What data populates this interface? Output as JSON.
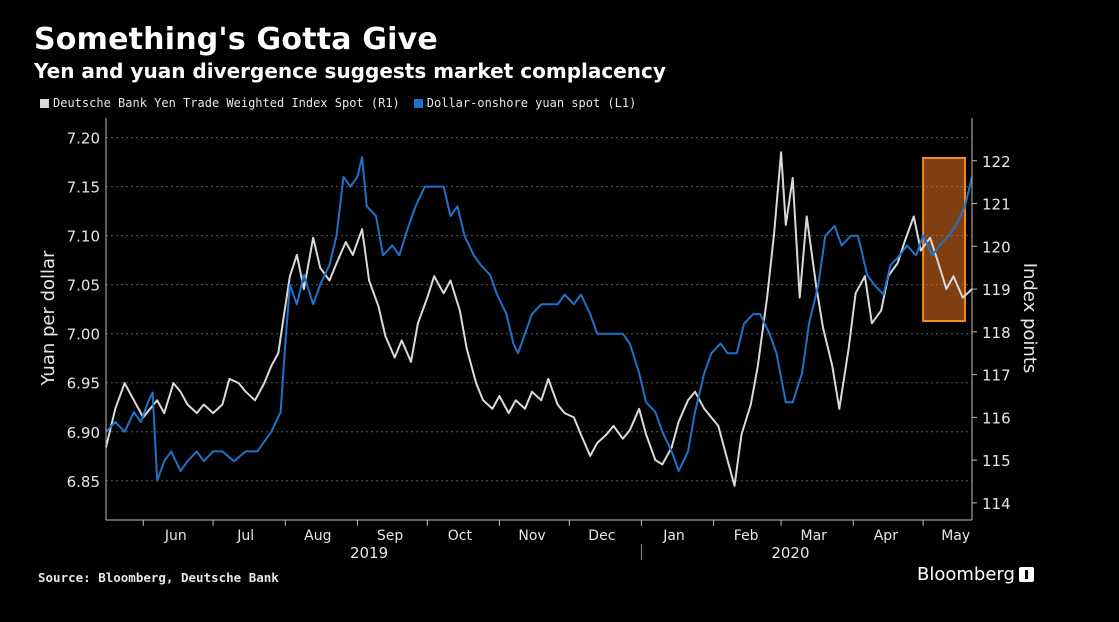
{
  "header": {
    "title": "Something's Gotta Give",
    "subtitle": "Yen and yuan divergence suggests market complacency"
  },
  "footer": {
    "source": "Source: Bloomberg, Deutsche Bank",
    "brand": "Bloomberg"
  },
  "colors": {
    "background": "#000000",
    "yen_series": "#d9d9d9",
    "yuan_series": "#1f72c9",
    "highlight": "#e8731f"
  },
  "chart_data": {
    "type": "line",
    "title": "Something's Gotta Give",
    "subtitle": "Yen and yuan divergence suggests market complacency",
    "legend": "top-left",
    "grid": true,
    "x_months": [
      "Jun",
      "Jul",
      "Aug",
      "Sep",
      "Oct",
      "Nov",
      "Dec",
      "Jan",
      "Feb",
      "Mar",
      "Apr",
      "May"
    ],
    "x_years": [
      "2019",
      "2020"
    ],
    "x_range": [
      "2019-05-16",
      "2020-05-22"
    ],
    "left_axis": {
      "label": "Yuan per dollar",
      "ylim": [
        6.81,
        7.22
      ],
      "ticks": [
        6.85,
        6.9,
        6.95,
        7.0,
        7.05,
        7.1,
        7.15,
        7.2
      ]
    },
    "right_axis": {
      "label": "Index points",
      "ylim": [
        113.6,
        123.0
      ],
      "ticks": [
        114,
        115,
        116,
        117,
        118,
        119,
        120,
        121,
        122
      ]
    },
    "highlight": {
      "from": "2020-05-01",
      "to": "2020-05-19",
      "label": ""
    },
    "series": [
      {
        "name": "Deutsche Bank Yen Trade Weighted Index Spot (R1)",
        "axis": "right",
        "color": "#d9d9d9",
        "points": [
          [
            "2019-05-16",
            115.3
          ],
          [
            "2019-05-20",
            116.2
          ],
          [
            "2019-05-24",
            116.8
          ],
          [
            "2019-05-28",
            116.4
          ],
          [
            "2019-06-01",
            116.0
          ],
          [
            "2019-06-04",
            116.2
          ],
          [
            "2019-06-07",
            116.4
          ],
          [
            "2019-06-10",
            116.1
          ],
          [
            "2019-06-14",
            116.8
          ],
          [
            "2019-06-17",
            116.6
          ],
          [
            "2019-06-20",
            116.3
          ],
          [
            "2019-06-24",
            116.1
          ],
          [
            "2019-06-27",
            116.3
          ],
          [
            "2019-07-01",
            116.1
          ],
          [
            "2019-07-05",
            116.3
          ],
          [
            "2019-07-08",
            116.9
          ],
          [
            "2019-07-12",
            116.8
          ],
          [
            "2019-07-15",
            116.6
          ],
          [
            "2019-07-19",
            116.4
          ],
          [
            "2019-07-23",
            116.8
          ],
          [
            "2019-07-26",
            117.2
          ],
          [
            "2019-07-29",
            117.5
          ],
          [
            "2019-08-01",
            118.6
          ],
          [
            "2019-08-03",
            119.3
          ],
          [
            "2019-08-06",
            119.8
          ],
          [
            "2019-08-09",
            119.0
          ],
          [
            "2019-08-13",
            120.2
          ],
          [
            "2019-08-16",
            119.5
          ],
          [
            "2019-08-20",
            119.2
          ],
          [
            "2019-08-23",
            119.6
          ],
          [
            "2019-08-27",
            120.1
          ],
          [
            "2019-08-30",
            119.8
          ],
          [
            "2019-09-03",
            120.4
          ],
          [
            "2019-09-06",
            119.2
          ],
          [
            "2019-09-10",
            118.6
          ],
          [
            "2019-09-13",
            117.9
          ],
          [
            "2019-09-17",
            117.4
          ],
          [
            "2019-09-20",
            117.8
          ],
          [
            "2019-09-24",
            117.3
          ],
          [
            "2019-09-27",
            118.2
          ],
          [
            "2019-10-01",
            118.8
          ],
          [
            "2019-10-04",
            119.3
          ],
          [
            "2019-10-08",
            118.9
          ],
          [
            "2019-10-11",
            119.2
          ],
          [
            "2019-10-15",
            118.5
          ],
          [
            "2019-10-18",
            117.6
          ],
          [
            "2019-10-22",
            116.8
          ],
          [
            "2019-10-25",
            116.4
          ],
          [
            "2019-10-29",
            116.2
          ],
          [
            "2019-11-01",
            116.5
          ],
          [
            "2019-11-05",
            116.1
          ],
          [
            "2019-11-08",
            116.4
          ],
          [
            "2019-11-12",
            116.2
          ],
          [
            "2019-11-15",
            116.6
          ],
          [
            "2019-11-19",
            116.4
          ],
          [
            "2019-11-22",
            116.9
          ],
          [
            "2019-11-26",
            116.3
          ],
          [
            "2019-11-29",
            116.1
          ],
          [
            "2019-12-03",
            116.0
          ],
          [
            "2019-12-06",
            115.6
          ],
          [
            "2019-12-10",
            115.1
          ],
          [
            "2019-12-13",
            115.4
          ],
          [
            "2019-12-17",
            115.6
          ],
          [
            "2019-12-20",
            115.8
          ],
          [
            "2019-12-24",
            115.5
          ],
          [
            "2019-12-27",
            115.7
          ],
          [
            "2019-12-31",
            116.2
          ],
          [
            "2020-01-03",
            115.6
          ],
          [
            "2020-01-07",
            115.0
          ],
          [
            "2020-01-10",
            114.9
          ],
          [
            "2020-01-14",
            115.3
          ],
          [
            "2020-01-17",
            115.9
          ],
          [
            "2020-01-21",
            116.4
          ],
          [
            "2020-01-24",
            116.6
          ],
          [
            "2020-01-28",
            116.2
          ],
          [
            "2020-01-31",
            116.0
          ],
          [
            "2020-02-03",
            115.8
          ],
          [
            "2020-02-06",
            115.2
          ],
          [
            "2020-02-10",
            114.4
          ],
          [
            "2020-02-13",
            115.6
          ],
          [
            "2020-02-17",
            116.3
          ],
          [
            "2020-02-20",
            117.2
          ],
          [
            "2020-02-24",
            118.8
          ],
          [
            "2020-02-27",
            120.3
          ],
          [
            "2020-03-01",
            122.2
          ],
          [
            "2020-03-03",
            120.5
          ],
          [
            "2020-03-06",
            121.6
          ],
          [
            "2020-03-09",
            118.8
          ],
          [
            "2020-03-12",
            120.7
          ],
          [
            "2020-03-16",
            119.1
          ],
          [
            "2020-03-19",
            118.1
          ],
          [
            "2020-03-23",
            117.2
          ],
          [
            "2020-03-26",
            116.2
          ],
          [
            "2020-03-30",
            117.6
          ],
          [
            "2020-04-02",
            118.9
          ],
          [
            "2020-04-06",
            119.3
          ],
          [
            "2020-04-09",
            118.2
          ],
          [
            "2020-04-13",
            118.5
          ],
          [
            "2020-04-16",
            119.3
          ],
          [
            "2020-04-20",
            119.6
          ],
          [
            "2020-04-23",
            120.1
          ],
          [
            "2020-04-27",
            120.7
          ],
          [
            "2020-04-30",
            119.9
          ],
          [
            "2020-05-04",
            120.2
          ],
          [
            "2020-05-07",
            119.7
          ],
          [
            "2020-05-11",
            119.0
          ],
          [
            "2020-05-14",
            119.3
          ],
          [
            "2020-05-18",
            118.8
          ],
          [
            "2020-05-22",
            119.0
          ]
        ]
      },
      {
        "name": "Dollar-onshore yuan spot (L1)",
        "axis": "left",
        "color": "#1f72c9",
        "points": [
          [
            "2019-05-16",
            6.9
          ],
          [
            "2019-05-20",
            6.91
          ],
          [
            "2019-05-24",
            6.9
          ],
          [
            "2019-05-28",
            6.92
          ],
          [
            "2019-05-31",
            6.91
          ],
          [
            "2019-06-03",
            6.93
          ],
          [
            "2019-06-05",
            6.94
          ],
          [
            "2019-06-07",
            6.85
          ],
          [
            "2019-06-10",
            6.87
          ],
          [
            "2019-06-13",
            6.88
          ],
          [
            "2019-06-17",
            6.86
          ],
          [
            "2019-06-20",
            6.87
          ],
          [
            "2019-06-24",
            6.88
          ],
          [
            "2019-06-27",
            6.87
          ],
          [
            "2019-07-01",
            6.88
          ],
          [
            "2019-07-05",
            6.88
          ],
          [
            "2019-07-10",
            6.87
          ],
          [
            "2019-07-15",
            6.88
          ],
          [
            "2019-07-20",
            6.88
          ],
          [
            "2019-07-26",
            6.9
          ],
          [
            "2019-07-30",
            6.92
          ],
          [
            "2019-08-01",
            6.99
          ],
          [
            "2019-08-03",
            7.05
          ],
          [
            "2019-08-06",
            7.03
          ],
          [
            "2019-08-09",
            7.06
          ],
          [
            "2019-08-13",
            7.03
          ],
          [
            "2019-08-16",
            7.05
          ],
          [
            "2019-08-20",
            7.07
          ],
          [
            "2019-08-23",
            7.1
          ],
          [
            "2019-08-26",
            7.16
          ],
          [
            "2019-08-29",
            7.15
          ],
          [
            "2019-09-01",
            7.16
          ],
          [
            "2019-09-03",
            7.18
          ],
          [
            "2019-09-05",
            7.13
          ],
          [
            "2019-09-09",
            7.12
          ],
          [
            "2019-09-12",
            7.08
          ],
          [
            "2019-09-16",
            7.09
          ],
          [
            "2019-09-19",
            7.08
          ],
          [
            "2019-09-23",
            7.11
          ],
          [
            "2019-09-26",
            7.13
          ],
          [
            "2019-09-30",
            7.15
          ],
          [
            "2019-10-04",
            7.15
          ],
          [
            "2019-10-08",
            7.15
          ],
          [
            "2019-10-11",
            7.12
          ],
          [
            "2019-10-14",
            7.13
          ],
          [
            "2019-10-17",
            7.1
          ],
          [
            "2019-10-21",
            7.08
          ],
          [
            "2019-10-24",
            7.07
          ],
          [
            "2019-10-28",
            7.06
          ],
          [
            "2019-10-31",
            7.04
          ],
          [
            "2019-11-04",
            7.02
          ],
          [
            "2019-11-07",
            6.99
          ],
          [
            "2019-11-09",
            6.98
          ],
          [
            "2019-11-12",
            7.0
          ],
          [
            "2019-11-15",
            7.02
          ],
          [
            "2019-11-19",
            7.03
          ],
          [
            "2019-11-22",
            7.03
          ],
          [
            "2019-11-26",
            7.03
          ],
          [
            "2019-11-29",
            7.04
          ],
          [
            "2019-12-03",
            7.03
          ],
          [
            "2019-12-06",
            7.04
          ],
          [
            "2019-12-10",
            7.02
          ],
          [
            "2019-12-13",
            7.0
          ],
          [
            "2019-12-17",
            7.0
          ],
          [
            "2019-12-20",
            7.0
          ],
          [
            "2019-12-24",
            7.0
          ],
          [
            "2019-12-27",
            6.99
          ],
          [
            "2019-12-31",
            6.96
          ],
          [
            "2020-01-03",
            6.93
          ],
          [
            "2020-01-07",
            6.92
          ],
          [
            "2020-01-10",
            6.9
          ],
          [
            "2020-01-14",
            6.88
          ],
          [
            "2020-01-17",
            6.86
          ],
          [
            "2020-01-21",
            6.88
          ],
          [
            "2020-01-24",
            6.92
          ],
          [
            "2020-01-28",
            6.96
          ],
          [
            "2020-01-31",
            6.98
          ],
          [
            "2020-02-04",
            6.99
          ],
          [
            "2020-02-07",
            6.98
          ],
          [
            "2020-02-11",
            6.98
          ],
          [
            "2020-02-14",
            7.01
          ],
          [
            "2020-02-18",
            7.02
          ],
          [
            "2020-02-21",
            7.02
          ],
          [
            "2020-02-25",
            7.0
          ],
          [
            "2020-02-28",
            6.98
          ],
          [
            "2020-03-03",
            6.93
          ],
          [
            "2020-03-06",
            6.93
          ],
          [
            "2020-03-10",
            6.96
          ],
          [
            "2020-03-13",
            7.01
          ],
          [
            "2020-03-17",
            7.05
          ],
          [
            "2020-03-20",
            7.1
          ],
          [
            "2020-03-24",
            7.11
          ],
          [
            "2020-03-27",
            7.09
          ],
          [
            "2020-03-31",
            7.1
          ],
          [
            "2020-04-03",
            7.1
          ],
          [
            "2020-04-07",
            7.06
          ],
          [
            "2020-04-10",
            7.05
          ],
          [
            "2020-04-14",
            7.04
          ],
          [
            "2020-04-17",
            7.07
          ],
          [
            "2020-04-21",
            7.08
          ],
          [
            "2020-04-24",
            7.09
          ],
          [
            "2020-04-28",
            7.08
          ],
          [
            "2020-05-01",
            7.1
          ],
          [
            "2020-05-05",
            7.08
          ],
          [
            "2020-05-08",
            7.09
          ],
          [
            "2020-05-12",
            7.1
          ],
          [
            "2020-05-15",
            7.11
          ],
          [
            "2020-05-19",
            7.13
          ],
          [
            "2020-05-22",
            7.16
          ]
        ]
      }
    ]
  }
}
